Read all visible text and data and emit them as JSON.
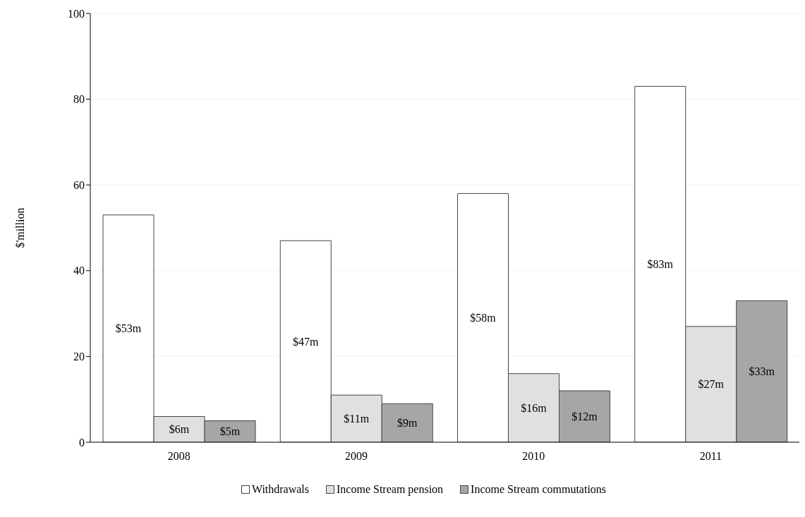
{
  "chart_data": {
    "type": "bar",
    "ylabel": "$'million",
    "categories": [
      "2008",
      "2009",
      "2010",
      "2011"
    ],
    "series": [
      {
        "name": "Withdrawals",
        "color": "#ffffff",
        "values": [
          53,
          47,
          58,
          83
        ],
        "value_labels": [
          "$53m",
          "$47m",
          "$58m",
          "$83m"
        ]
      },
      {
        "name": "Income Stream pension",
        "color": "#e0e0e0",
        "values": [
          6,
          11,
          16,
          27
        ],
        "value_labels": [
          "$6m",
          "$11m",
          "$16m",
          "$27m"
        ]
      },
      {
        "name": "Income Stream commutations",
        "color": "#a6a6a6",
        "values": [
          5,
          9,
          12,
          33
        ],
        "value_labels": [
          "$5m",
          "$9m",
          "$12m",
          "$33m"
        ]
      }
    ],
    "ylim": [
      0,
      100
    ],
    "yticks": [
      0,
      20,
      40,
      60,
      80,
      100
    ],
    "grid": "y",
    "legend": "bottom"
  }
}
